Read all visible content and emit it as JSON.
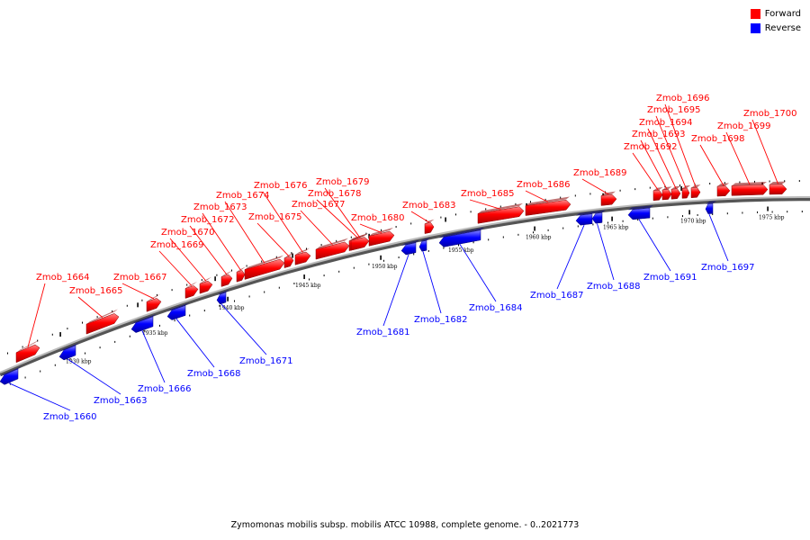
{
  "caption": "Zymomonas mobilis subsp. mobilis ATCC 10988, complete genome. - 0..2021773",
  "legend": [
    {
      "label": "Forward",
      "color": "#ff0000"
    },
    {
      "label": "Reverse",
      "color": "#0000ff"
    }
  ],
  "colors": {
    "forward": "#ff0000",
    "reverse": "#0000ff",
    "backbone": "#888888"
  },
  "ticks": [
    "1930 kbp",
    "1935 kbp",
    "1940 kbp",
    "1945 kbp",
    "1950 kbp",
    "1955 kbp",
    "1960 kbp",
    "1965 kbp",
    "1970 kbp",
    "1975 kbp"
  ],
  "genes": [
    {
      "name": "Zmob_1660",
      "strand": "reverse"
    },
    {
      "name": "Zmob_1663",
      "strand": "reverse"
    },
    {
      "name": "Zmob_1664",
      "strand": "forward"
    },
    {
      "name": "Zmob_1665",
      "strand": "forward"
    },
    {
      "name": "Zmob_1666",
      "strand": "reverse"
    },
    {
      "name": "Zmob_1667",
      "strand": "forward"
    },
    {
      "name": "Zmob_1668",
      "strand": "reverse"
    },
    {
      "name": "Zmob_1669",
      "strand": "forward"
    },
    {
      "name": "Zmob_1670",
      "strand": "forward"
    },
    {
      "name": "Zmob_1671",
      "strand": "reverse"
    },
    {
      "name": "Zmob_1672",
      "strand": "forward"
    },
    {
      "name": "Zmob_1673",
      "strand": "forward"
    },
    {
      "name": "Zmob_1674",
      "strand": "forward"
    },
    {
      "name": "Zmob_1675",
      "strand": "forward"
    },
    {
      "name": "Zmob_1676",
      "strand": "forward"
    },
    {
      "name": "Zmob_1677",
      "strand": "forward"
    },
    {
      "name": "Zmob_1678",
      "strand": "forward"
    },
    {
      "name": "Zmob_1679",
      "strand": "forward"
    },
    {
      "name": "Zmob_1680",
      "strand": "forward"
    },
    {
      "name": "Zmob_1681",
      "strand": "reverse"
    },
    {
      "name": "Zmob_1682",
      "strand": "reverse"
    },
    {
      "name": "Zmob_1683",
      "strand": "forward"
    },
    {
      "name": "Zmob_1684",
      "strand": "reverse"
    },
    {
      "name": "Zmob_1685",
      "strand": "forward"
    },
    {
      "name": "Zmob_1686",
      "strand": "forward"
    },
    {
      "name": "Zmob_1687",
      "strand": "reverse"
    },
    {
      "name": "Zmob_1688",
      "strand": "reverse"
    },
    {
      "name": "Zmob_1689",
      "strand": "forward"
    },
    {
      "name": "Zmob_1691",
      "strand": "reverse"
    },
    {
      "name": "Zmob_1692",
      "strand": "forward"
    },
    {
      "name": "Zmob_1693",
      "strand": "forward"
    },
    {
      "name": "Zmob_1694",
      "strand": "forward"
    },
    {
      "name": "Zmob_1695",
      "strand": "forward"
    },
    {
      "name": "Zmob_1696",
      "strand": "forward"
    },
    {
      "name": "Zmob_1697",
      "strand": "reverse"
    },
    {
      "name": "Zmob_1698",
      "strand": "forward"
    },
    {
      "name": "Zmob_1699",
      "strand": "forward"
    },
    {
      "name": "Zmob_1700",
      "strand": "forward"
    }
  ]
}
